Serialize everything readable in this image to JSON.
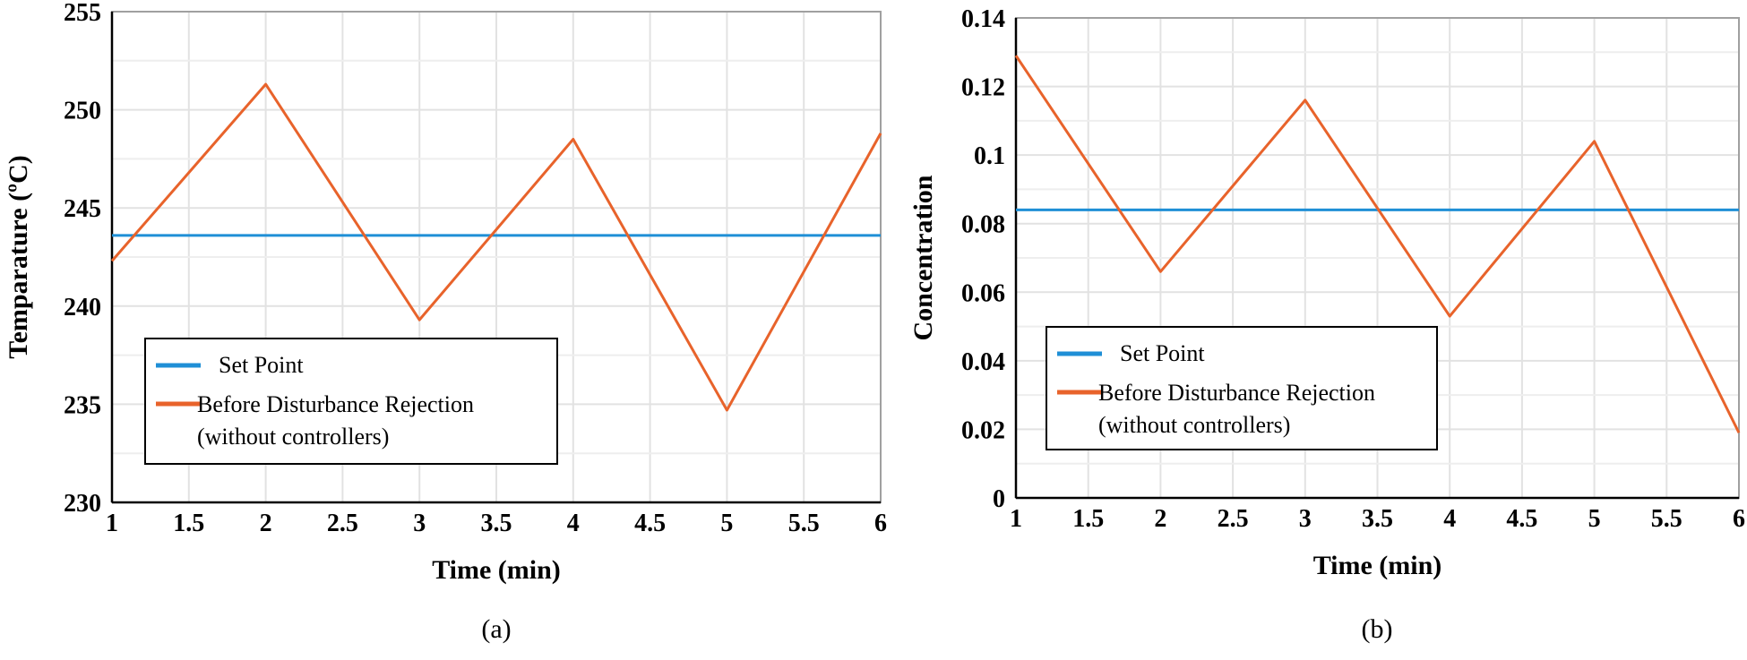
{
  "chart_data": [
    {
      "type": "line",
      "xlabel": "Time (min)",
      "ylabel": "Temparature (ºC)",
      "caption": "(a)",
      "xlim": [
        1,
        6
      ],
      "ylim": [
        230,
        255
      ],
      "xticks": [
        1,
        1.5,
        2,
        2.5,
        3,
        3.5,
        4,
        4.5,
        5,
        5.5,
        6
      ],
      "xtick_labels": [
        "1",
        "1.5",
        "2",
        "2.5",
        "3",
        "3.5",
        "4",
        "4.5",
        "5",
        "5.5",
        "6"
      ],
      "yticks": [
        230,
        235,
        240,
        245,
        250,
        255
      ],
      "ytick_labels": [
        "230",
        "235",
        "240",
        "245",
        "250",
        "255"
      ],
      "grid": true,
      "legend_placement": "bottom-left",
      "legend": [
        "Set Point",
        "Before Disturbance Rejection",
        "(without controllers)"
      ],
      "series": [
        {
          "name": "Set Point",
          "color": "#1f8fd6",
          "x": [
            1,
            6
          ],
          "y": [
            243.6,
            243.6
          ]
        },
        {
          "name": "Before Disturbance Rejection (without controllers)",
          "color": "#e8632b",
          "x": [
            1,
            2,
            3,
            4,
            5,
            6
          ],
          "y": [
            242.3,
            251.3,
            239.3,
            248.5,
            234.7,
            248.8
          ]
        }
      ]
    },
    {
      "type": "line",
      "xlabel": "Time (min)",
      "ylabel": "Concentration",
      "caption": "(b)",
      "xlim": [
        1,
        6
      ],
      "ylim": [
        0,
        0.14
      ],
      "xticks": [
        1,
        1.5,
        2,
        2.5,
        3,
        3.5,
        4,
        4.5,
        5,
        5.5,
        6
      ],
      "xtick_labels": [
        "1",
        "1.5",
        "2",
        "2.5",
        "3",
        "3.5",
        "4",
        "4.5",
        "5",
        "5.5",
        "6"
      ],
      "yticks": [
        0,
        0.02,
        0.04,
        0.06,
        0.08,
        0.1,
        0.12,
        0.14
      ],
      "ytick_labels": [
        "0",
        "0.02",
        "0.04",
        "0.06",
        "0.08",
        "0.1",
        "0.12",
        "0.14"
      ],
      "grid": true,
      "legend_placement": "bottom-left",
      "legend": [
        "Set Point",
        "Before Disturbance Rejection",
        "(without controllers)"
      ],
      "series": [
        {
          "name": "Set Point",
          "color": "#1f8fd6",
          "x": [
            1,
            6
          ],
          "y": [
            0.084,
            0.084
          ]
        },
        {
          "name": "Before Disturbance Rejection (without controllers)",
          "color": "#e8632b",
          "x": [
            1,
            2,
            3,
            4,
            5,
            6
          ],
          "y": [
            0.129,
            0.066,
            0.116,
            0.053,
            0.104,
            0.019
          ]
        }
      ]
    }
  ]
}
